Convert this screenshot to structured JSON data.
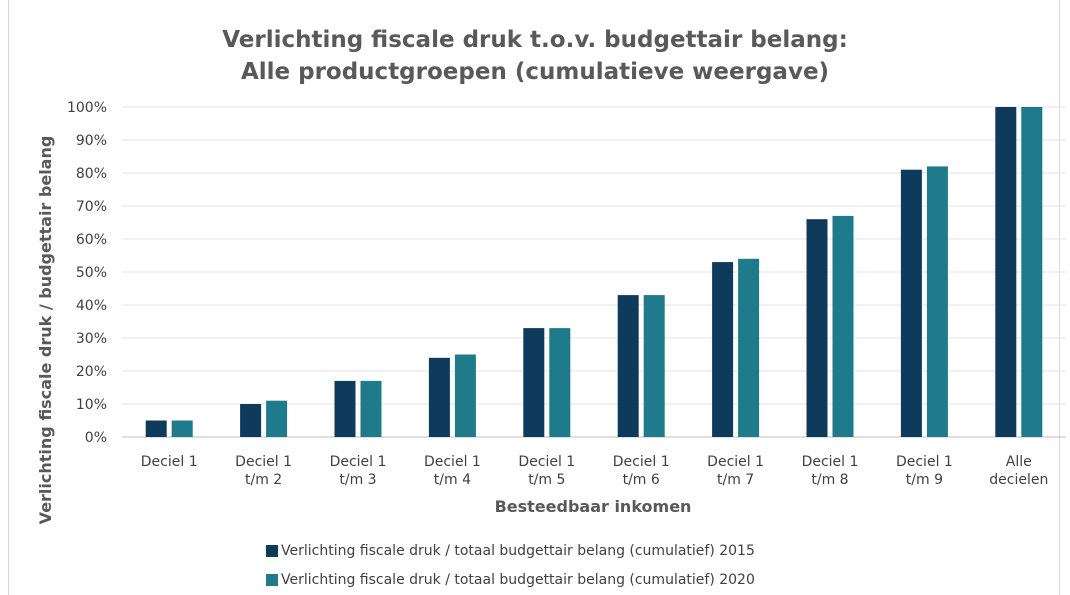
{
  "chart_data": {
    "type": "bar",
    "title": "Verlichting fiscale druk t.o.v. budgettair belang:",
    "subtitle": "Alle productgroepen (cumulatieve weergave)",
    "xlabel": "Besteedbaar inkomen",
    "ylabel": "Verlichting fiscale druk / budgettair belang",
    "ylim": [
      0,
      100
    ],
    "yticks": [
      "0%",
      "10%",
      "20%",
      "30%",
      "40%",
      "50%",
      "60%",
      "70%",
      "80%",
      "90%",
      "100%"
    ],
    "categories": [
      [
        "Deciel 1"
      ],
      [
        "Deciel 1",
        "t/m 2"
      ],
      [
        "Deciel 1",
        "t/m 3"
      ],
      [
        "Deciel 1",
        "t/m 4"
      ],
      [
        "Deciel 1",
        "t/m 5"
      ],
      [
        "Deciel 1",
        "t/m 6"
      ],
      [
        "Deciel 1",
        "t/m 7"
      ],
      [
        "Deciel 1",
        "t/m 8"
      ],
      [
        "Deciel 1",
        "t/m 9"
      ],
      [
        "Alle",
        "decielen"
      ]
    ],
    "series": [
      {
        "name": "Verlichting fiscale druk / totaal budgettair belang (cumulatief) 2015",
        "color": "#0e3a5c",
        "values": [
          5,
          10,
          17,
          24,
          33,
          43,
          53,
          66,
          81,
          100
        ]
      },
      {
        "name": "Verlichting fiscale druk / totaal budgettair belang (cumulatief) 2020",
        "color": "#1f7a8c",
        "values": [
          5,
          11,
          17,
          25,
          33,
          43,
          54,
          67,
          82,
          100
        ]
      }
    ],
    "grid": true,
    "legend_position": "bottom"
  }
}
